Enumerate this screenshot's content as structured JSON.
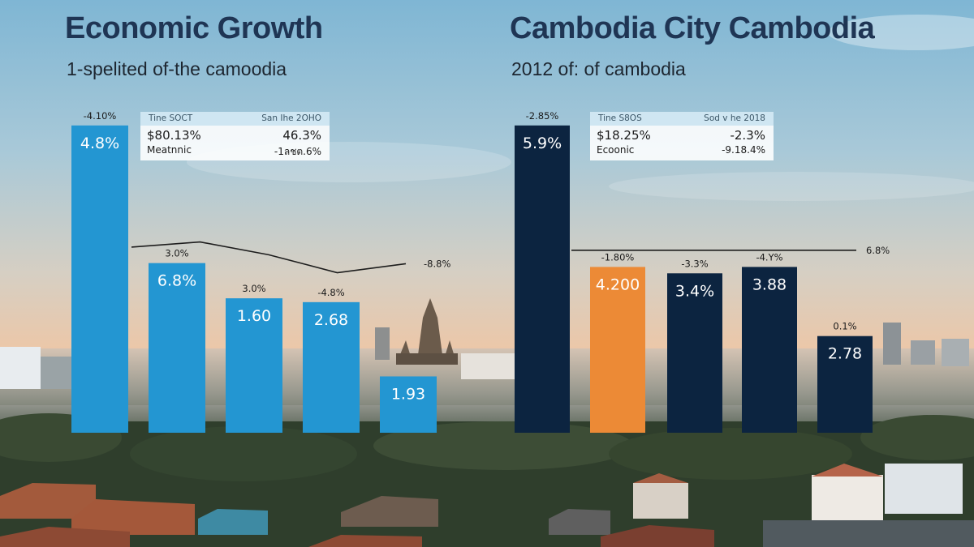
{
  "chart_data": [
    {
      "type": "bar",
      "title": "Economic Growth",
      "subtitle": "1-spelited of-the camoodia",
      "legend_box": {
        "header_left": "Tine SOCT",
        "header_right": "San Ihe 2OHO",
        "row1_left": "$80.13%",
        "row1_right": "46.3%",
        "row2_left": "Meatnnic",
        "row2_right": "-1ลชต.6%"
      },
      "colors": {
        "bars": "#2396d2"
      },
      "bars": [
        {
          "value": 4.8,
          "label": "4.8%",
          "top_label": "-4.10%"
        },
        {
          "value": 2.65,
          "label": "6.8%",
          "top_label": "3.0%"
        },
        {
          "value": 2.1,
          "label": "1.60",
          "top_label": "3.0%"
        },
        {
          "value": 2.04,
          "label": "2.68",
          "top_label": "-4.8%"
        },
        {
          "value": 0.88,
          "label": "1.93",
          "top_label": ""
        }
      ],
      "line": {
        "values": [
          2.9,
          2.98,
          2.78,
          2.5,
          2.64
        ],
        "end_label": "-8.8%"
      }
    },
    {
      "type": "bar",
      "title": "Cambodia City Cambodia",
      "subtitle": "2012 of: of cambodia",
      "legend_box": {
        "header_left": "Tine S8OS",
        "header_right": "Sod v he 2018",
        "row1_left": "$18.25%",
        "row1_right": "-2.3%",
        "row2_left": "Ecoonic",
        "row2_right": "-9.18.4%"
      },
      "colors": {
        "navy": "#0c2440",
        "orange": "#ec8a36"
      },
      "bars": [
        {
          "value": 4.8,
          "label": "5.9%",
          "top_label": "-2.85%",
          "color": "navy"
        },
        {
          "value": 2.59,
          "label": "4.200",
          "top_label": "-1.80%",
          "color": "orange"
        },
        {
          "value": 2.49,
          "label": "3.4%",
          "top_label": "-3.3%",
          "color": "navy"
        },
        {
          "value": 2.59,
          "label": "3.88",
          "top_label": "-4.Y%",
          "color": "navy"
        },
        {
          "value": 1.51,
          "label": "2.78",
          "top_label": "0.1%",
          "color": "navy"
        }
      ],
      "line": {
        "values": [
          2.85,
          2.85
        ],
        "end_label": "6.8%"
      }
    }
  ]
}
